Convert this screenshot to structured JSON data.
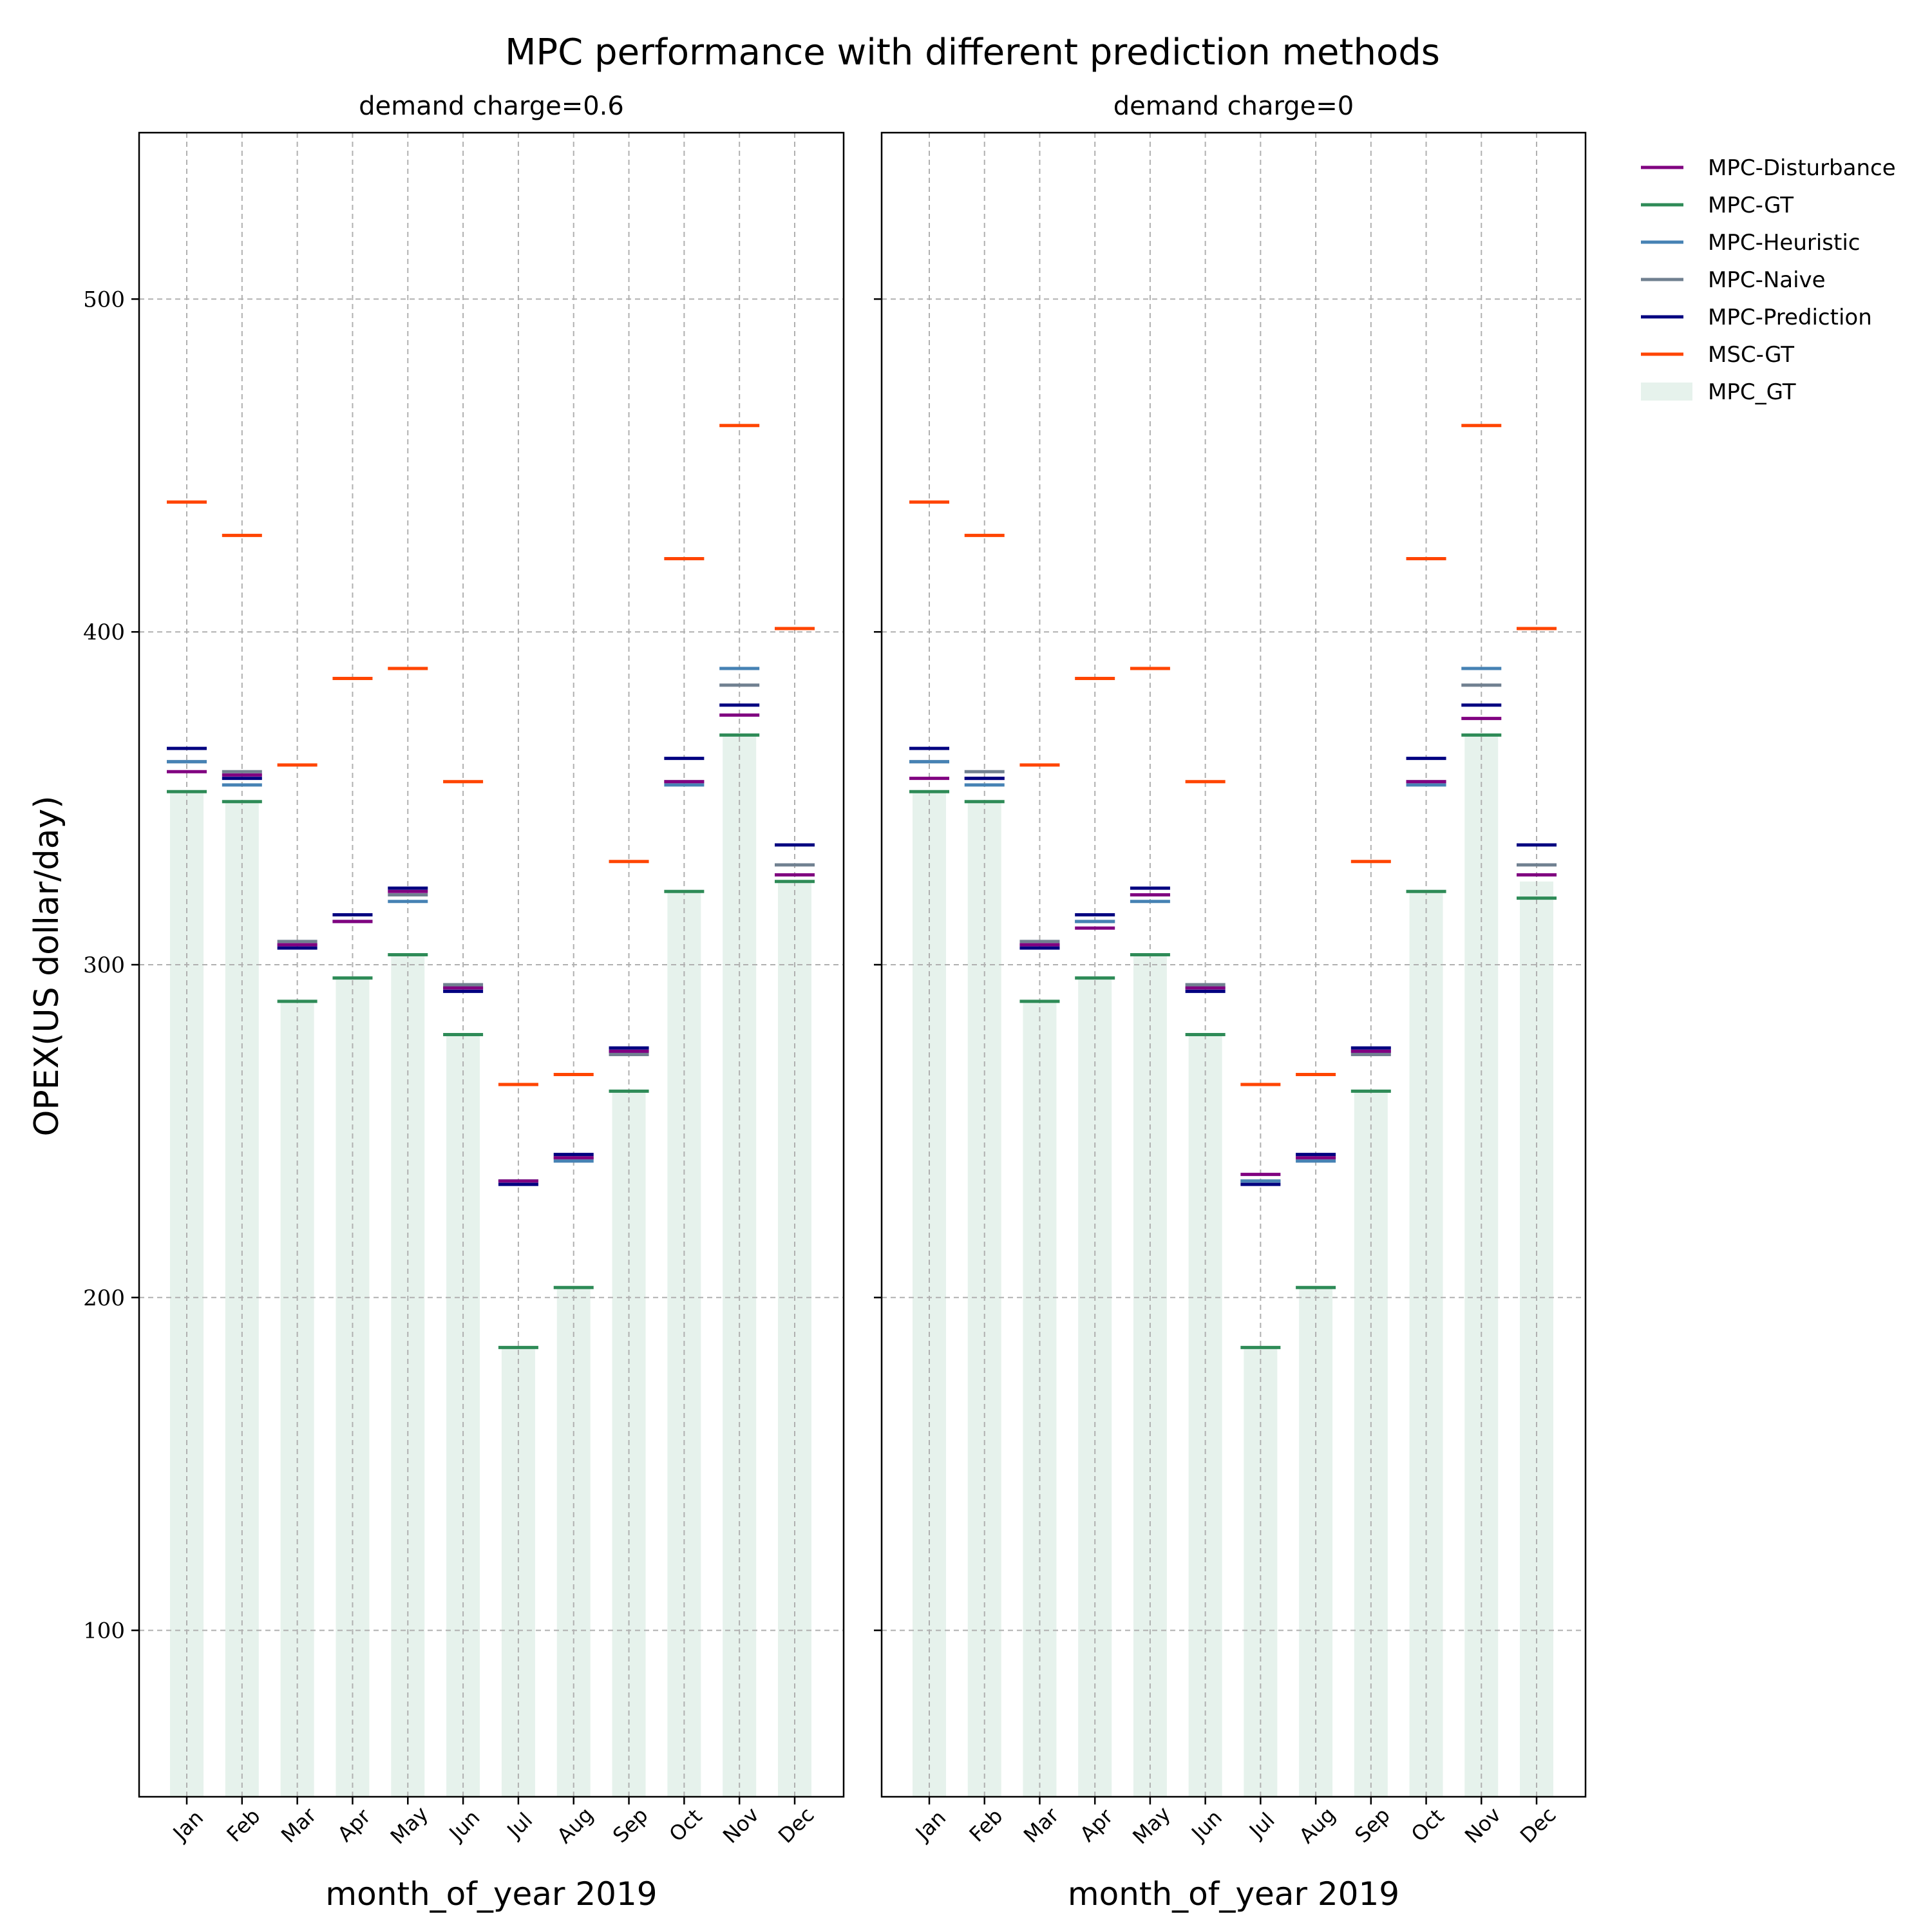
{
  "chart_data": {
    "type": "bar",
    "title": "MPC performance with different prediction methods",
    "ylabel": "OPEX(US dollar/day)",
    "xlabel": "month_of_year 2019",
    "ylim": [
      50,
      550
    ],
    "yticks": [
      100,
      200,
      300,
      400,
      500
    ],
    "grid": true,
    "legend_position": "outside right",
    "categories": [
      "Jan",
      "Feb",
      "Mar",
      "Apr",
      "May",
      "Jun",
      "Jul",
      "Aug",
      "Sep",
      "Oct",
      "Nov",
      "Dec"
    ],
    "bar_series": {
      "name": "MPC_GT",
      "color": "#e6f2ec",
      "values": [
        352,
        349,
        289,
        296,
        303,
        279,
        185,
        203,
        262,
        322,
        369,
        325
      ]
    },
    "marker_series": [
      {
        "name": "MPC-Disturbance",
        "color": "#800080"
      },
      {
        "name": "MPC-GT",
        "color": "#2e8b57"
      },
      {
        "name": "MPC-Heuristic",
        "color": "#4682b4"
      },
      {
        "name": "MPC-Naive",
        "color": "#708090"
      },
      {
        "name": "MPC-Prediction",
        "color": "#000080"
      },
      {
        "name": "MSC-GT",
        "color": "#ff4500"
      }
    ],
    "panels": [
      {
        "subtitle": "demand charge=0.6",
        "series": {
          "MSC-GT": [
            439,
            429,
            360,
            386,
            389,
            355,
            264,
            267,
            331,
            422,
            462,
            401
          ],
          "MPC-Prediction": [
            365,
            356,
            305,
            315,
            323,
            292,
            234,
            243,
            275,
            362,
            378,
            336
          ],
          "MPC-Naive": [
            361,
            358,
            307,
            313,
            321,
            294,
            235,
            242,
            273,
            355,
            384,
            330
          ],
          "MPC-Heuristic": [
            361,
            354,
            306,
            313,
            319,
            293,
            235,
            241,
            274,
            354,
            389,
            327
          ],
          "MPC-Disturbance": [
            358,
            357,
            306,
            313,
            322,
            293,
            235,
            242,
            274,
            355,
            375,
            327
          ],
          "MPC-GT": [
            352,
            349,
            289,
            296,
            303,
            279,
            185,
            203,
            262,
            322,
            369,
            325
          ]
        }
      },
      {
        "subtitle": "demand charge=0",
        "series": {
          "MSC-GT": [
            439,
            429,
            360,
            386,
            389,
            355,
            264,
            267,
            331,
            422,
            462,
            401
          ],
          "MPC-Prediction": [
            365,
            356,
            305,
            315,
            323,
            292,
            234,
            243,
            275,
            362,
            378,
            336
          ],
          "MPC-Naive": [
            361,
            358,
            307,
            313,
            321,
            294,
            235,
            242,
            273,
            355,
            384,
            330
          ],
          "MPC-Heuristic": [
            361,
            354,
            306,
            313,
            319,
            293,
            235,
            241,
            274,
            354,
            389,
            327
          ],
          "MPC-Disturbance": [
            356,
            356,
            306,
            311,
            321,
            293,
            237,
            242,
            274,
            355,
            374,
            327
          ],
          "MPC-GT": [
            352,
            349,
            289,
            296,
            303,
            279,
            185,
            203,
            262,
            322,
            369,
            320
          ]
        }
      }
    ]
  }
}
